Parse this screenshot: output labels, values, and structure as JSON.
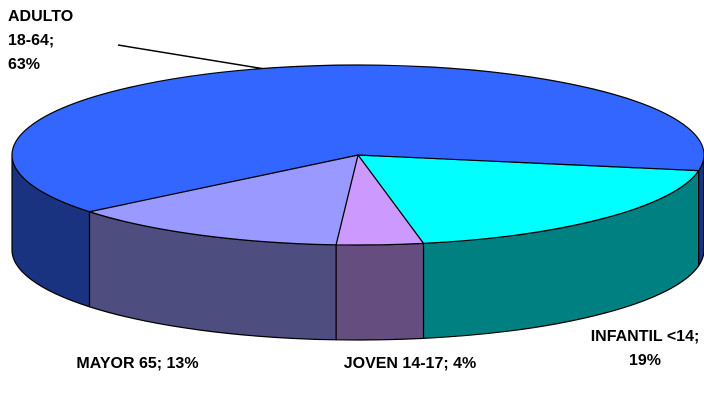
{
  "chart_data": {
    "type": "pie",
    "categories": [
      "INFANTIL <14;",
      "JOVEN 14-17;",
      "MAYOR 65;",
      "ADULTO 18-64;"
    ],
    "values": [
      19,
      4,
      13,
      63
    ],
    "value_labels": [
      "19%",
      "4%",
      "13%",
      "63%"
    ],
    "colors": [
      "#00ffff",
      "#cc99ff",
      "#9999ff",
      "#3366ff"
    ]
  }
}
